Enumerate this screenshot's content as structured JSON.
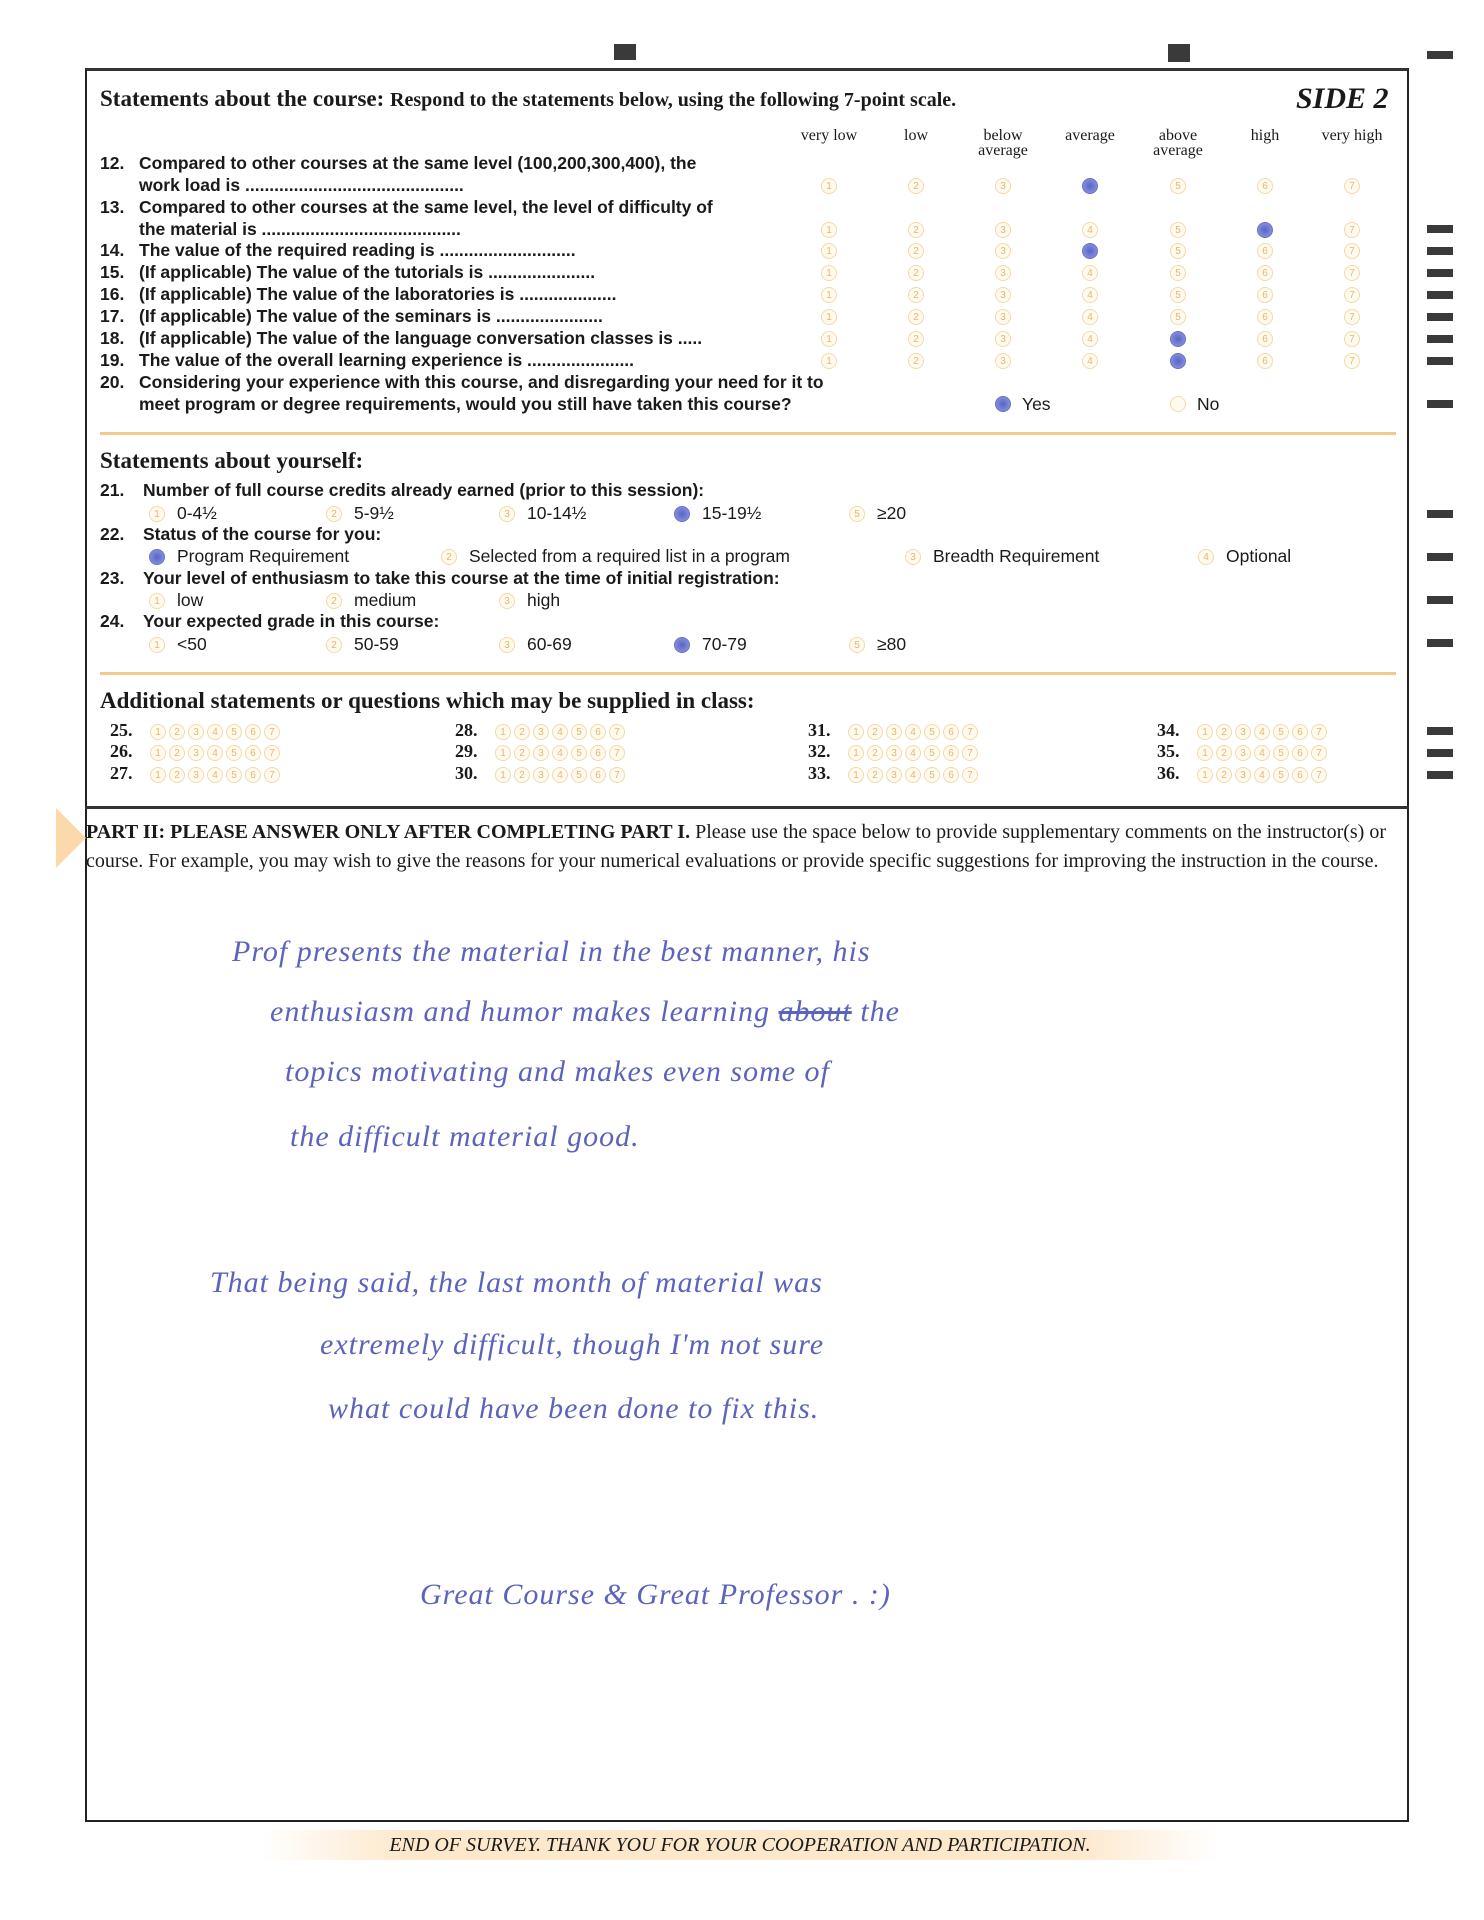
{
  "header": {
    "section_title": "Statements about the course:",
    "instructions": "Respond to the statements below, using the following 7-point scale.",
    "side_label": "SIDE 2"
  },
  "scale": [
    "very low",
    "low",
    "below average",
    "average",
    "above average",
    "high",
    "very high"
  ],
  "course_questions": [
    {
      "num": "12.",
      "lines": [
        "Compared to other courses at the same level (100,200,300,400), the",
        "work load is ............................................."
      ],
      "selected": 4
    },
    {
      "num": "13.",
      "lines": [
        "Compared to other courses at the same level, the level of difficulty of",
        "the material is ........................................."
      ],
      "selected": 6
    },
    {
      "num": "14.",
      "lines": [
        "The value of the required reading is ............................"
      ],
      "selected": 4
    },
    {
      "num": "15.",
      "lines": [
        "(If applicable) The value of the tutorials is ......................"
      ],
      "selected": null
    },
    {
      "num": "16.",
      "lines": [
        "(If applicable) The value of the laboratories is ...................."
      ],
      "selected": null
    },
    {
      "num": "17.",
      "lines": [
        "(If applicable) The value of the seminars is ......................"
      ],
      "selected": null
    },
    {
      "num": "18.",
      "lines": [
        "(If applicable) The value of the language conversation classes is ....."
      ],
      "selected": 5
    },
    {
      "num": "19.",
      "lines": [
        "The value of the overall learning experience is ......................"
      ],
      "selected": 5
    }
  ],
  "q20": {
    "num": "20.",
    "lines": [
      "Considering your experience with this course, and disregarding your need for it to",
      "meet program or degree requirements, would you still have taken this course?"
    ],
    "options": [
      "Yes",
      "No"
    ],
    "selected": "Yes"
  },
  "yourself": {
    "title": "Statements about yourself:",
    "questions": [
      {
        "num": "21.",
        "text": "Number of full course credits already earned (prior to this session):",
        "options": [
          "0-4½",
          "5-9½",
          "10-14½",
          "15-19½",
          "≥20"
        ],
        "selected": 4
      },
      {
        "num": "22.",
        "text": "Status of the course for you:",
        "options": [
          "Program Requirement",
          "Selected from a required list in a program",
          "Breadth Requirement",
          "Optional"
        ],
        "selected": 1
      },
      {
        "num": "23.",
        "text": "Your level of enthusiasm to take this course at the time of initial registration:",
        "options": [
          "low",
          "medium",
          "high"
        ],
        "selected": null
      },
      {
        "num": "24.",
        "text": "Your expected grade in this course:",
        "options": [
          "<50",
          "50-59",
          "60-69",
          "70-79",
          "≥80"
        ],
        "selected": 4
      }
    ]
  },
  "additional": {
    "title": "Additional statements or questions which may be supplied in class:",
    "items": [
      "25.",
      "26.",
      "27.",
      "28.",
      "29.",
      "30.",
      "31.",
      "32.",
      "33.",
      "34.",
      "35.",
      "36."
    ]
  },
  "part2": {
    "lead": "PART II:  PLEASE ANSWER ONLY AFTER COMPLETING PART I.",
    "body": "Please use the space below to provide supplementary comments on the instructor(s) or course. For example, you may wish to give the reasons for your numerical evaluations or provide specific suggestions for improving the instruction in the course."
  },
  "handwritten_comments": {
    "lines": [
      "Prof presents the material in the best manner, his",
      "enthusiasm and humor makes learning",
      "topics motivating and makes even some of",
      "the difficult material good.",
      "That being said, the last month of material was",
      "extremely difficult, though I'm not sure",
      "what could have been done to fix this.",
      "Great Course & Great Professor . :)"
    ],
    "struck_word": "about",
    "after_strike": "the"
  },
  "footer": "END OF SURVEY. THANK YOU FOR YOUR COOPERATION AND PARTICIPATION.",
  "colors": {
    "ink": "#5b63bd",
    "accent": "#f2c98a",
    "bubble": "#e3b868"
  }
}
